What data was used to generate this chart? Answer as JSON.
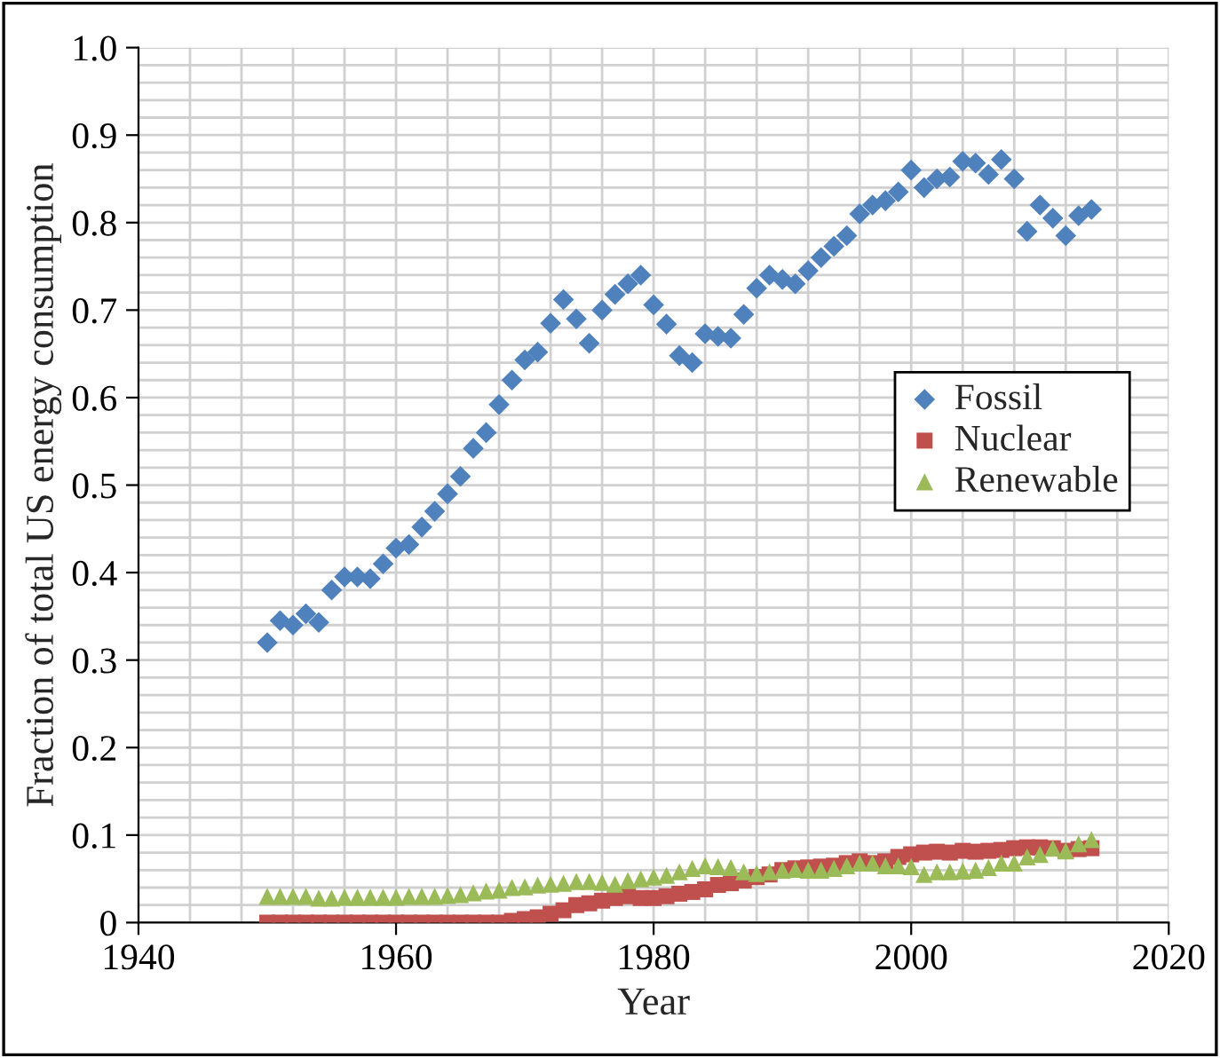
{
  "chart_data": {
    "type": "scatter",
    "xlabel": "Year",
    "ylabel": "Fraction of total US energy consumption",
    "x": [
      1950,
      1951,
      1952,
      1953,
      1954,
      1955,
      1956,
      1957,
      1958,
      1959,
      1960,
      1961,
      1962,
      1963,
      1964,
      1965,
      1966,
      1967,
      1968,
      1969,
      1970,
      1971,
      1972,
      1973,
      1974,
      1975,
      1976,
      1977,
      1978,
      1979,
      1980,
      1981,
      1982,
      1983,
      1984,
      1985,
      1986,
      1987,
      1988,
      1989,
      1990,
      1991,
      1992,
      1993,
      1994,
      1995,
      1996,
      1997,
      1998,
      1999,
      2000,
      2001,
      2002,
      2003,
      2004,
      2005,
      2006,
      2007,
      2008,
      2009,
      2010,
      2011,
      2012,
      2013,
      2014
    ],
    "series": [
      {
        "name": "Fossil",
        "color": "#4f81bd",
        "marker": "diamond",
        "values": [
          0.32,
          0.345,
          0.34,
          0.353,
          0.343,
          0.38,
          0.395,
          0.395,
          0.393,
          0.41,
          0.428,
          0.432,
          0.452,
          0.47,
          0.49,
          0.51,
          0.542,
          0.56,
          0.592,
          0.62,
          0.643,
          0.652,
          0.685,
          0.712,
          0.69,
          0.662,
          0.7,
          0.718,
          0.73,
          0.74,
          0.706,
          0.684,
          0.648,
          0.64,
          0.673,
          0.67,
          0.668,
          0.695,
          0.725,
          0.74,
          0.735,
          0.73,
          0.745,
          0.76,
          0.773,
          0.785,
          0.81,
          0.82,
          0.825,
          0.835,
          0.86,
          0.84,
          0.85,
          0.852,
          0.87,
          0.868,
          0.855,
          0.872,
          0.85,
          0.79,
          0.82,
          0.805,
          0.785,
          0.808,
          0.815
        ]
      },
      {
        "name": "Nuclear",
        "color": "#c0504d",
        "marker": "square",
        "values": [
          0,
          0,
          0,
          0,
          0,
          0,
          0,
          0,
          0,
          0,
          0,
          0,
          0,
          0,
          0,
          0,
          0,
          0,
          0,
          0.002,
          0.004,
          0.006,
          0.01,
          0.014,
          0.02,
          0.022,
          0.025,
          0.028,
          0.03,
          0.028,
          0.028,
          0.03,
          0.033,
          0.035,
          0.038,
          0.043,
          0.045,
          0.048,
          0.052,
          0.055,
          0.06,
          0.062,
          0.063,
          0.064,
          0.065,
          0.068,
          0.07,
          0.068,
          0.07,
          0.075,
          0.078,
          0.08,
          0.081,
          0.08,
          0.082,
          0.081,
          0.082,
          0.083,
          0.085,
          0.086,
          0.086,
          0.085,
          0.082,
          0.084,
          0.085
        ]
      },
      {
        "name": "Renewable",
        "color": "#9bbb59",
        "marker": "triangle",
        "values": [
          0.03,
          0.03,
          0.03,
          0.03,
          0.028,
          0.028,
          0.029,
          0.029,
          0.029,
          0.029,
          0.029,
          0.03,
          0.03,
          0.03,
          0.031,
          0.032,
          0.034,
          0.036,
          0.037,
          0.04,
          0.041,
          0.043,
          0.044,
          0.045,
          0.047,
          0.047,
          0.046,
          0.044,
          0.048,
          0.05,
          0.052,
          0.054,
          0.058,
          0.062,
          0.065,
          0.064,
          0.063,
          0.058,
          0.056,
          0.058,
          0.06,
          0.061,
          0.06,
          0.06,
          0.062,
          0.065,
          0.068,
          0.068,
          0.065,
          0.065,
          0.064,
          0.055,
          0.058,
          0.058,
          0.059,
          0.06,
          0.063,
          0.068,
          0.068,
          0.075,
          0.078,
          0.085,
          0.082,
          0.09,
          0.095
        ]
      }
    ],
    "xlim": [
      1940,
      2020
    ],
    "xticks": [
      1940,
      1960,
      1980,
      2000,
      2020
    ],
    "ylim": [
      0,
      1.0
    ],
    "yticks": [
      {
        "value": 0,
        "label": "0"
      },
      {
        "value": 0.1,
        "label": "0.1"
      },
      {
        "value": 0.2,
        "label": "0.2"
      },
      {
        "value": 0.3,
        "label": "0.3"
      },
      {
        "value": 0.4,
        "label": "0.4"
      },
      {
        "value": 0.5,
        "label": "0.5"
      },
      {
        "value": 0.6,
        "label": "0.6"
      },
      {
        "value": 0.7,
        "label": "0.7"
      },
      {
        "value": 0.8,
        "label": "0.8"
      },
      {
        "value": 0.9,
        "label": "0.9"
      },
      {
        "value": 1.0,
        "label": "1.0"
      }
    ],
    "grid": true,
    "legend": "right"
  }
}
